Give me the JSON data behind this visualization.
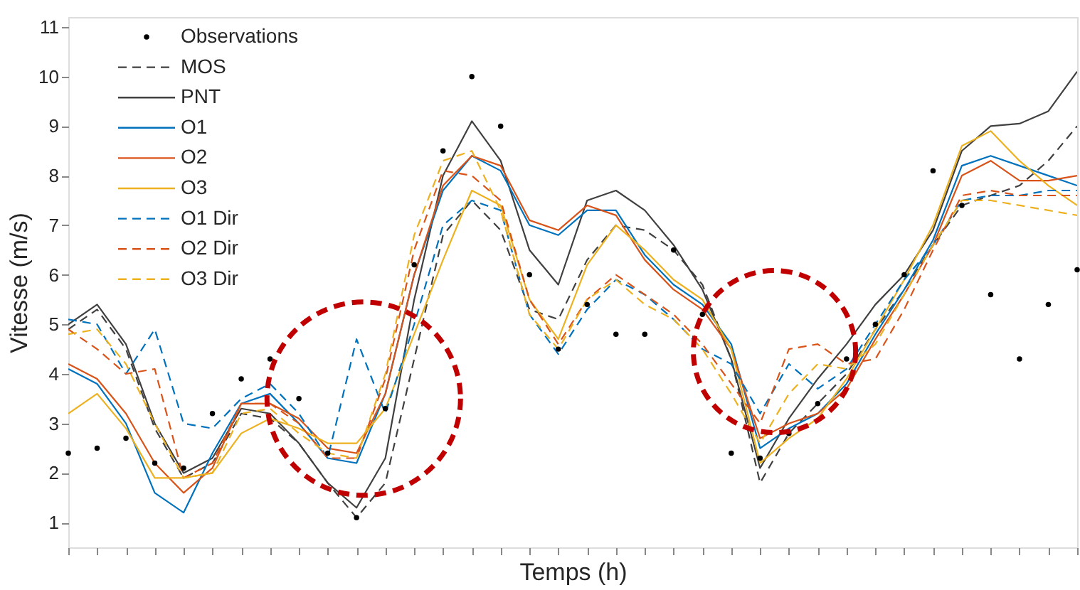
{
  "chart_data": {
    "type": "line",
    "xlabel": "Temps (h)",
    "ylabel": "Vitesse (m/s)",
    "categories": [
      null,
      null,
      null,
      null,
      null,
      null,
      null,
      null,
      null,
      null,
      null,
      null,
      null,
      null,
      null,
      null,
      null,
      null,
      null,
      null,
      null,
      null,
      null,
      null,
      null,
      null,
      null,
      null,
      null,
      null,
      null,
      null,
      null,
      null,
      null,
      null
    ],
    "ylim": [
      0.5,
      11.2
    ],
    "yticks": [
      1,
      2,
      3,
      4,
      5,
      6,
      7,
      8,
      9,
      10,
      11
    ],
    "grid": false,
    "legend": "top left",
    "series": [
      {
        "name": "Observations",
        "type": "scatter",
        "marker": "circle",
        "color": "#000000",
        "values": [
          2.4,
          2.5,
          2.7,
          2.2,
          2.1,
          3.2,
          3.9,
          4.3,
          3.5,
          2.4,
          1.1,
          3.3,
          6.2,
          8.5,
          10.0,
          9.0,
          6.0,
          4.5,
          5.4,
          4.8,
          4.8,
          6.5,
          5.2,
          2.4,
          2.3,
          2.8,
          3.4,
          4.3,
          5.0,
          6.0,
          8.1,
          7.4,
          5.6,
          4.3,
          5.4,
          6.1
        ]
      },
      {
        "name": "MOS",
        "line_style": "dashed",
        "color": "#404040",
        "values": [
          4.9,
          5.3,
          4.5,
          2.9,
          1.9,
          2.2,
          3.2,
          3.1,
          2.6,
          1.8,
          1.1,
          1.8,
          4.3,
          6.8,
          7.5,
          6.9,
          5.3,
          5.1,
          6.3,
          7.0,
          6.9,
          6.5,
          5.8,
          4.3,
          1.8,
          2.8,
          3.4,
          4.0,
          4.9,
          5.7,
          6.6,
          7.4,
          7.6,
          7.8,
          8.3,
          9.0
        ]
      },
      {
        "name": "PNT",
        "line_style": "solid",
        "color": "#404040",
        "values": [
          5.0,
          5.4,
          4.6,
          3.0,
          2.0,
          2.3,
          3.3,
          3.2,
          2.6,
          1.8,
          1.3,
          2.3,
          5.5,
          8.0,
          9.1,
          8.3,
          6.5,
          5.8,
          7.5,
          7.7,
          7.3,
          6.6,
          5.7,
          4.3,
          2.1,
          3.1,
          3.9,
          4.6,
          5.4,
          6.0,
          6.9,
          8.5,
          9.0,
          9.05,
          9.3,
          10.1
        ]
      },
      {
        "name": "O1",
        "line_style": "solid",
        "color": "#0072bd",
        "values": [
          4.1,
          3.8,
          3.0,
          1.6,
          1.2,
          2.4,
          3.4,
          3.6,
          3.0,
          2.3,
          2.2,
          3.6,
          6.0,
          7.7,
          8.4,
          8.1,
          7.0,
          6.8,
          7.3,
          7.3,
          6.4,
          5.8,
          5.4,
          4.6,
          2.5,
          2.9,
          3.2,
          3.8,
          4.8,
          5.7,
          6.7,
          8.2,
          8.4,
          8.2,
          8.0,
          7.8
        ]
      },
      {
        "name": "O2",
        "line_style": "solid",
        "color": "#d95319",
        "values": [
          4.2,
          3.9,
          3.2,
          2.2,
          1.6,
          2.1,
          3.4,
          3.4,
          3.1,
          2.5,
          2.4,
          3.6,
          6.0,
          7.8,
          8.4,
          8.2,
          7.1,
          6.9,
          7.4,
          7.2,
          6.3,
          5.7,
          5.3,
          4.5,
          2.7,
          3.0,
          3.2,
          3.7,
          4.7,
          5.6,
          6.6,
          8.0,
          8.3,
          7.9,
          7.9,
          8.0
        ]
      },
      {
        "name": "O3",
        "line_style": "solid",
        "color": "#edb120",
        "values": [
          3.2,
          3.6,
          2.9,
          1.9,
          1.9,
          2.0,
          2.8,
          3.1,
          2.9,
          2.6,
          2.6,
          3.3,
          4.8,
          6.3,
          7.7,
          7.4,
          5.5,
          4.7,
          6.2,
          7.0,
          6.5,
          5.9,
          5.5,
          4.5,
          2.2,
          2.7,
          3.1,
          3.9,
          4.9,
          5.9,
          7.0,
          8.6,
          8.9,
          8.3,
          7.8,
          7.4
        ]
      },
      {
        "name": "O1 Dir",
        "line_style": "dashed",
        "color": "#0072bd",
        "values": [
          5.1,
          5.0,
          4.0,
          4.9,
          3.0,
          2.9,
          3.5,
          3.8,
          3.2,
          2.3,
          4.7,
          3.2,
          5.0,
          7.0,
          7.5,
          7.3,
          5.2,
          4.4,
          5.3,
          5.9,
          5.6,
          5.1,
          4.5,
          4.2,
          3.2,
          4.2,
          3.7,
          4.1,
          5.0,
          5.9,
          6.6,
          7.5,
          7.6,
          7.6,
          7.7,
          7.7
        ]
      },
      {
        "name": "O2 Dir",
        "line_style": "dashed",
        "color": "#d95319",
        "values": [
          4.9,
          4.5,
          4.0,
          4.1,
          1.9,
          2.2,
          3.4,
          3.4,
          3.0,
          2.3,
          2.3,
          3.9,
          6.5,
          8.1,
          8.0,
          7.5,
          5.5,
          4.6,
          5.5,
          6.0,
          5.6,
          5.2,
          4.6,
          3.8,
          3.0,
          4.5,
          4.6,
          4.2,
          4.3,
          5.3,
          6.5,
          7.6,
          7.7,
          7.6,
          7.6,
          7.6
        ]
      },
      {
        "name": "O3 Dir",
        "line_style": "dashed",
        "color": "#edb120",
        "values": [
          4.8,
          4.9,
          4.2,
          3.0,
          1.9,
          2.0,
          3.2,
          3.3,
          2.8,
          2.4,
          2.3,
          4.0,
          6.8,
          8.3,
          8.5,
          7.3,
          5.2,
          4.5,
          5.5,
          5.9,
          5.4,
          5.1,
          4.5,
          3.6,
          2.6,
          3.6,
          4.2,
          4.1,
          4.6,
          5.6,
          6.6,
          7.5,
          7.5,
          7.4,
          7.3,
          7.2
        ]
      }
    ]
  }
}
